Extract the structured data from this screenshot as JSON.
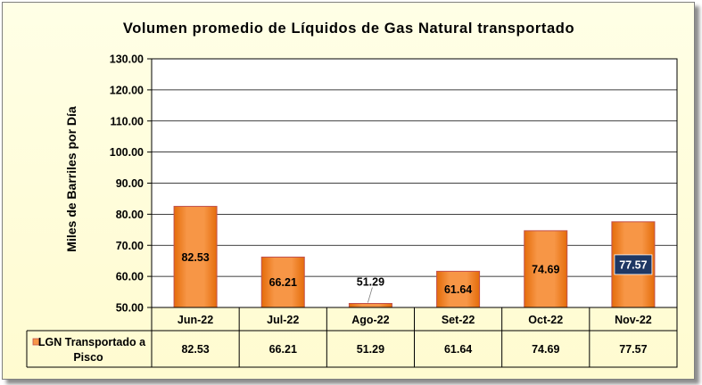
{
  "chart_data": {
    "type": "bar",
    "title": "Volumen promedio de Líquidos de Gas Natural transportado",
    "ylabel": "Miles de Barriles por Día",
    "xlabel": "",
    "ylim": [
      50,
      130
    ],
    "yticks": [
      "50.00",
      "60.00",
      "70.00",
      "80.00",
      "90.00",
      "100.00",
      "110.00",
      "120.00",
      "130.00"
    ],
    "categories": [
      "Jun-22",
      "Jul-22",
      "Ago-22",
      "Set-22",
      "Oct-22",
      "Nov-22"
    ],
    "series": [
      {
        "name": "LGN Transportado a Pisco",
        "name_lines": [
          "LGN Transportado a",
          "Pisco"
        ],
        "values": [
          82.53,
          66.21,
          51.29,
          61.64,
          74.69,
          77.57
        ],
        "value_labels": [
          "82.53",
          "66.21",
          "51.29",
          "61.64",
          "74.69",
          "77.57"
        ]
      }
    ],
    "data_table": true,
    "grid": true,
    "legend_position": "data-table",
    "colors": {
      "bar_fill": "#f79646",
      "bar_stroke": "#c0504d",
      "highlight_label_bg": "#1f3864",
      "background": "#ffffe6",
      "plot_background": "#ffffff"
    }
  }
}
